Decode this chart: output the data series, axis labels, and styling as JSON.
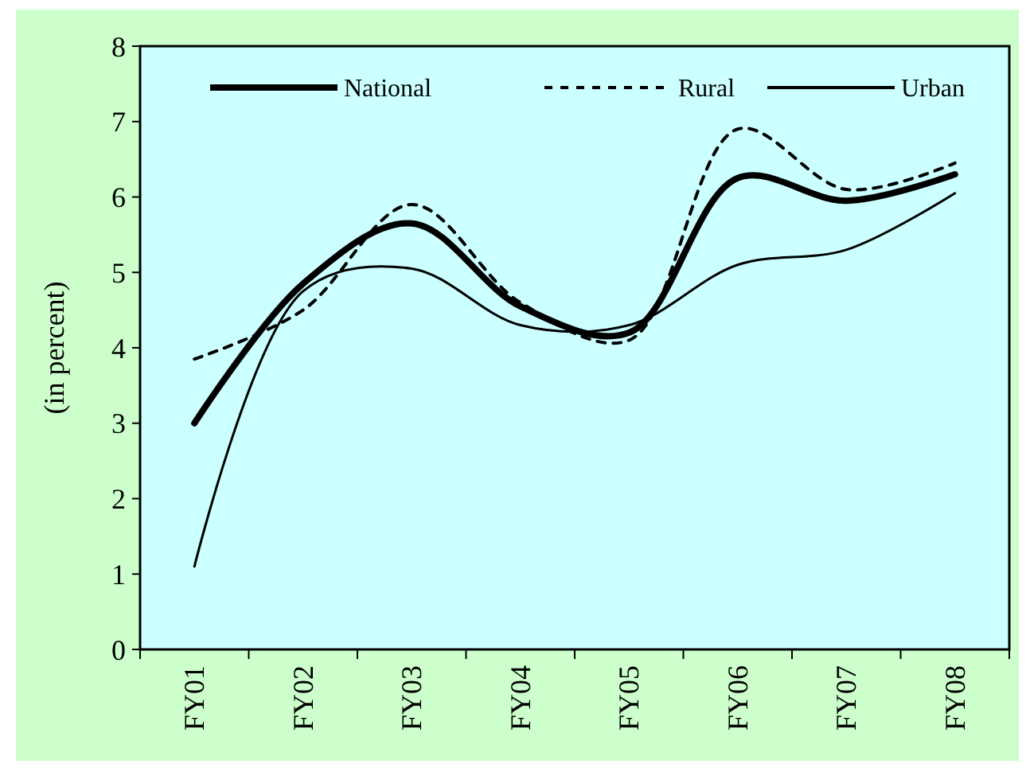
{
  "chart_data": {
    "type": "line",
    "ylabel": "(in percent)",
    "categories": [
      "FY01",
      "FY02",
      "FY03",
      "FY04",
      "FY05",
      "FY06",
      "FY07",
      "FY08"
    ],
    "series": [
      {
        "name": "National",
        "color": "#000000",
        "line_style": "solid",
        "values": [
          3.0,
          4.85,
          5.65,
          4.55,
          4.2,
          6.25,
          5.95,
          6.3
        ]
      },
      {
        "name": "Rural",
        "color": "#000000",
        "line_style": "dashed",
        "values": [
          3.85,
          4.5,
          5.9,
          4.6,
          4.1,
          6.9,
          6.1,
          6.45
        ]
      },
      {
        "name": "Urban",
        "color": "#000000",
        "line_style": "solid",
        "values": [
          1.1,
          4.75,
          5.05,
          4.3,
          4.3,
          5.1,
          5.3,
          6.05
        ]
      }
    ],
    "ylim": [
      0,
      8
    ],
    "yticks": [
      0,
      1,
      2,
      3,
      4,
      5,
      6,
      7,
      8
    ],
    "grid": false,
    "legend": "top"
  }
}
